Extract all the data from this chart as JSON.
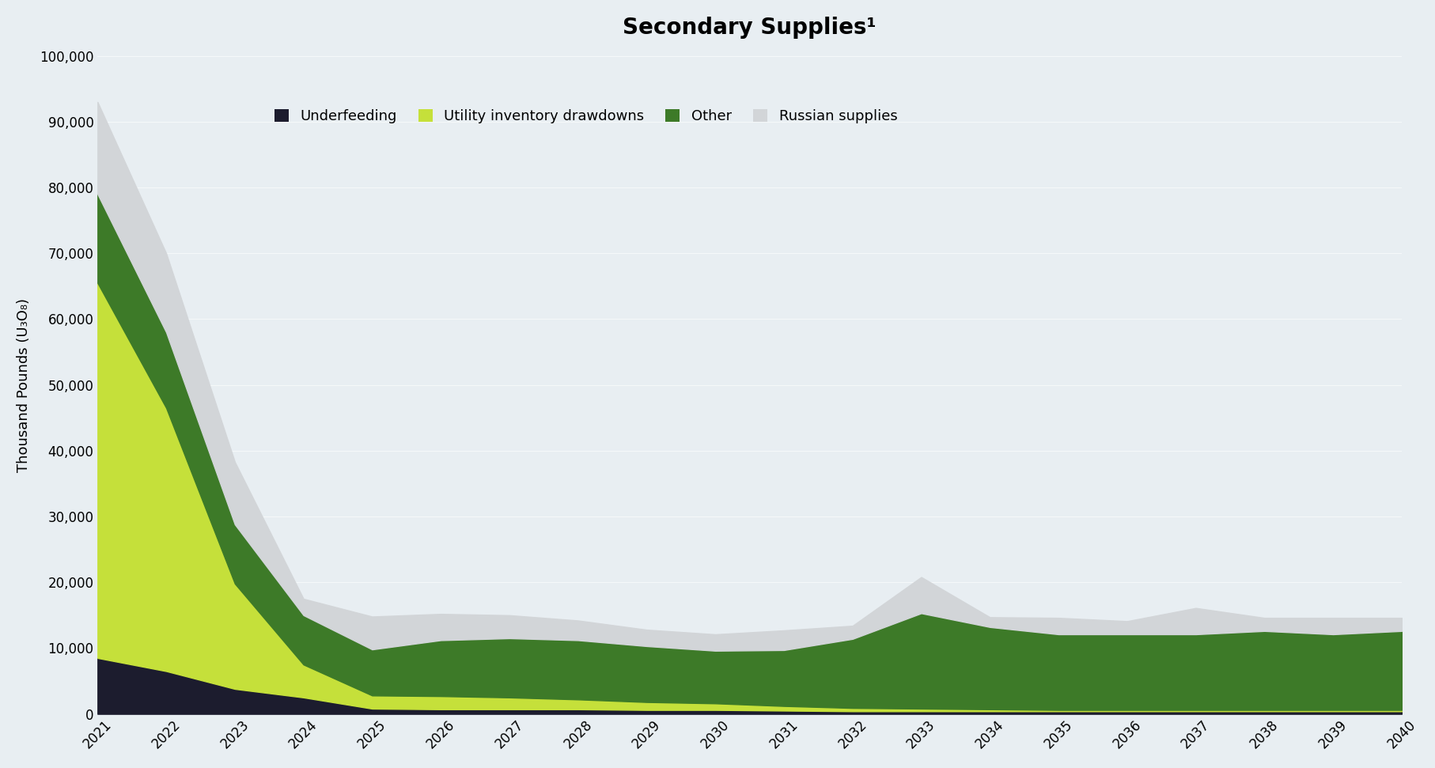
{
  "title": "Secondary Supplies¹",
  "ylabel": "Thousand Pounds (U₃O₈)",
  "background_color": "#e8eef2",
  "years": [
    2021,
    2022,
    2023,
    2024,
    2025,
    2026,
    2027,
    2028,
    2029,
    2030,
    2031,
    2032,
    2033,
    2034,
    2035,
    2036,
    2037,
    2038,
    2039,
    2040
  ],
  "underfeeding": [
    8500,
    6500,
    3800,
    2500,
    800,
    700,
    700,
    700,
    600,
    600,
    500,
    400,
    400,
    400,
    400,
    400,
    400,
    400,
    400,
    400
  ],
  "utility_inventory": [
    57000,
    40000,
    16000,
    5000,
    2000,
    2000,
    1800,
    1500,
    1200,
    1000,
    700,
    500,
    400,
    300,
    200,
    200,
    200,
    200,
    200,
    200
  ],
  "other": [
    13500,
    11500,
    9000,
    7500,
    7000,
    8500,
    9000,
    9000,
    8500,
    8000,
    8500,
    10500,
    14500,
    12500,
    11500,
    11500,
    11500,
    12000,
    11500,
    12000
  ],
  "russian_supplies": [
    14000,
    12000,
    9500,
    2500,
    5000,
    4000,
    3500,
    3000,
    2500,
    2500,
    3000,
    2000,
    5500,
    1500,
    2500,
    2000,
    4000,
    2000,
    2500,
    2000
  ],
  "colors": {
    "underfeeding": "#1c1c2e",
    "utility_inventory": "#c5e03a",
    "other": "#3d7a28",
    "russian_supplies": "#d2d5d8"
  },
  "legend_labels": [
    "Underfeeding",
    "Utility inventory drawdowns",
    "Other",
    "Russian supplies"
  ],
  "ylim": [
    0,
    100000
  ],
  "yticks": [
    0,
    10000,
    20000,
    30000,
    40000,
    50000,
    60000,
    70000,
    80000,
    90000,
    100000
  ],
  "title_fontsize": 20,
  "axis_fontsize": 13,
  "tick_fontsize": 12,
  "legend_fontsize": 13
}
